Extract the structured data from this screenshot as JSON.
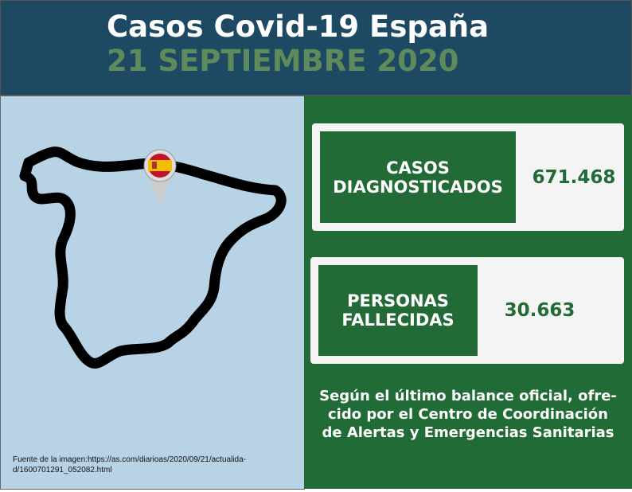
{
  "header": {
    "title": "Casos Covid-19 España",
    "date": "21 SEPTIEMBRE 2020"
  },
  "cards": [
    {
      "label_lines": [
        "CASOS",
        "DIAGNOSTICADOS"
      ],
      "value": "671.468"
    },
    {
      "label_lines": [
        "PERSONAS",
        "FALLECIDAS"
      ],
      "value": "30.663"
    }
  ],
  "note_lines": [
    "Según el último balance oficial, ofre-",
    "cido por el Centro de Coordinación",
    "de Alertas y Emergencias Sanitarias"
  ],
  "source_lines": [
    "Fuente de la imagen:https://as.com/diarioas/2020/09/21/actualida-",
    "d/1600701291_052082.html"
  ]
}
